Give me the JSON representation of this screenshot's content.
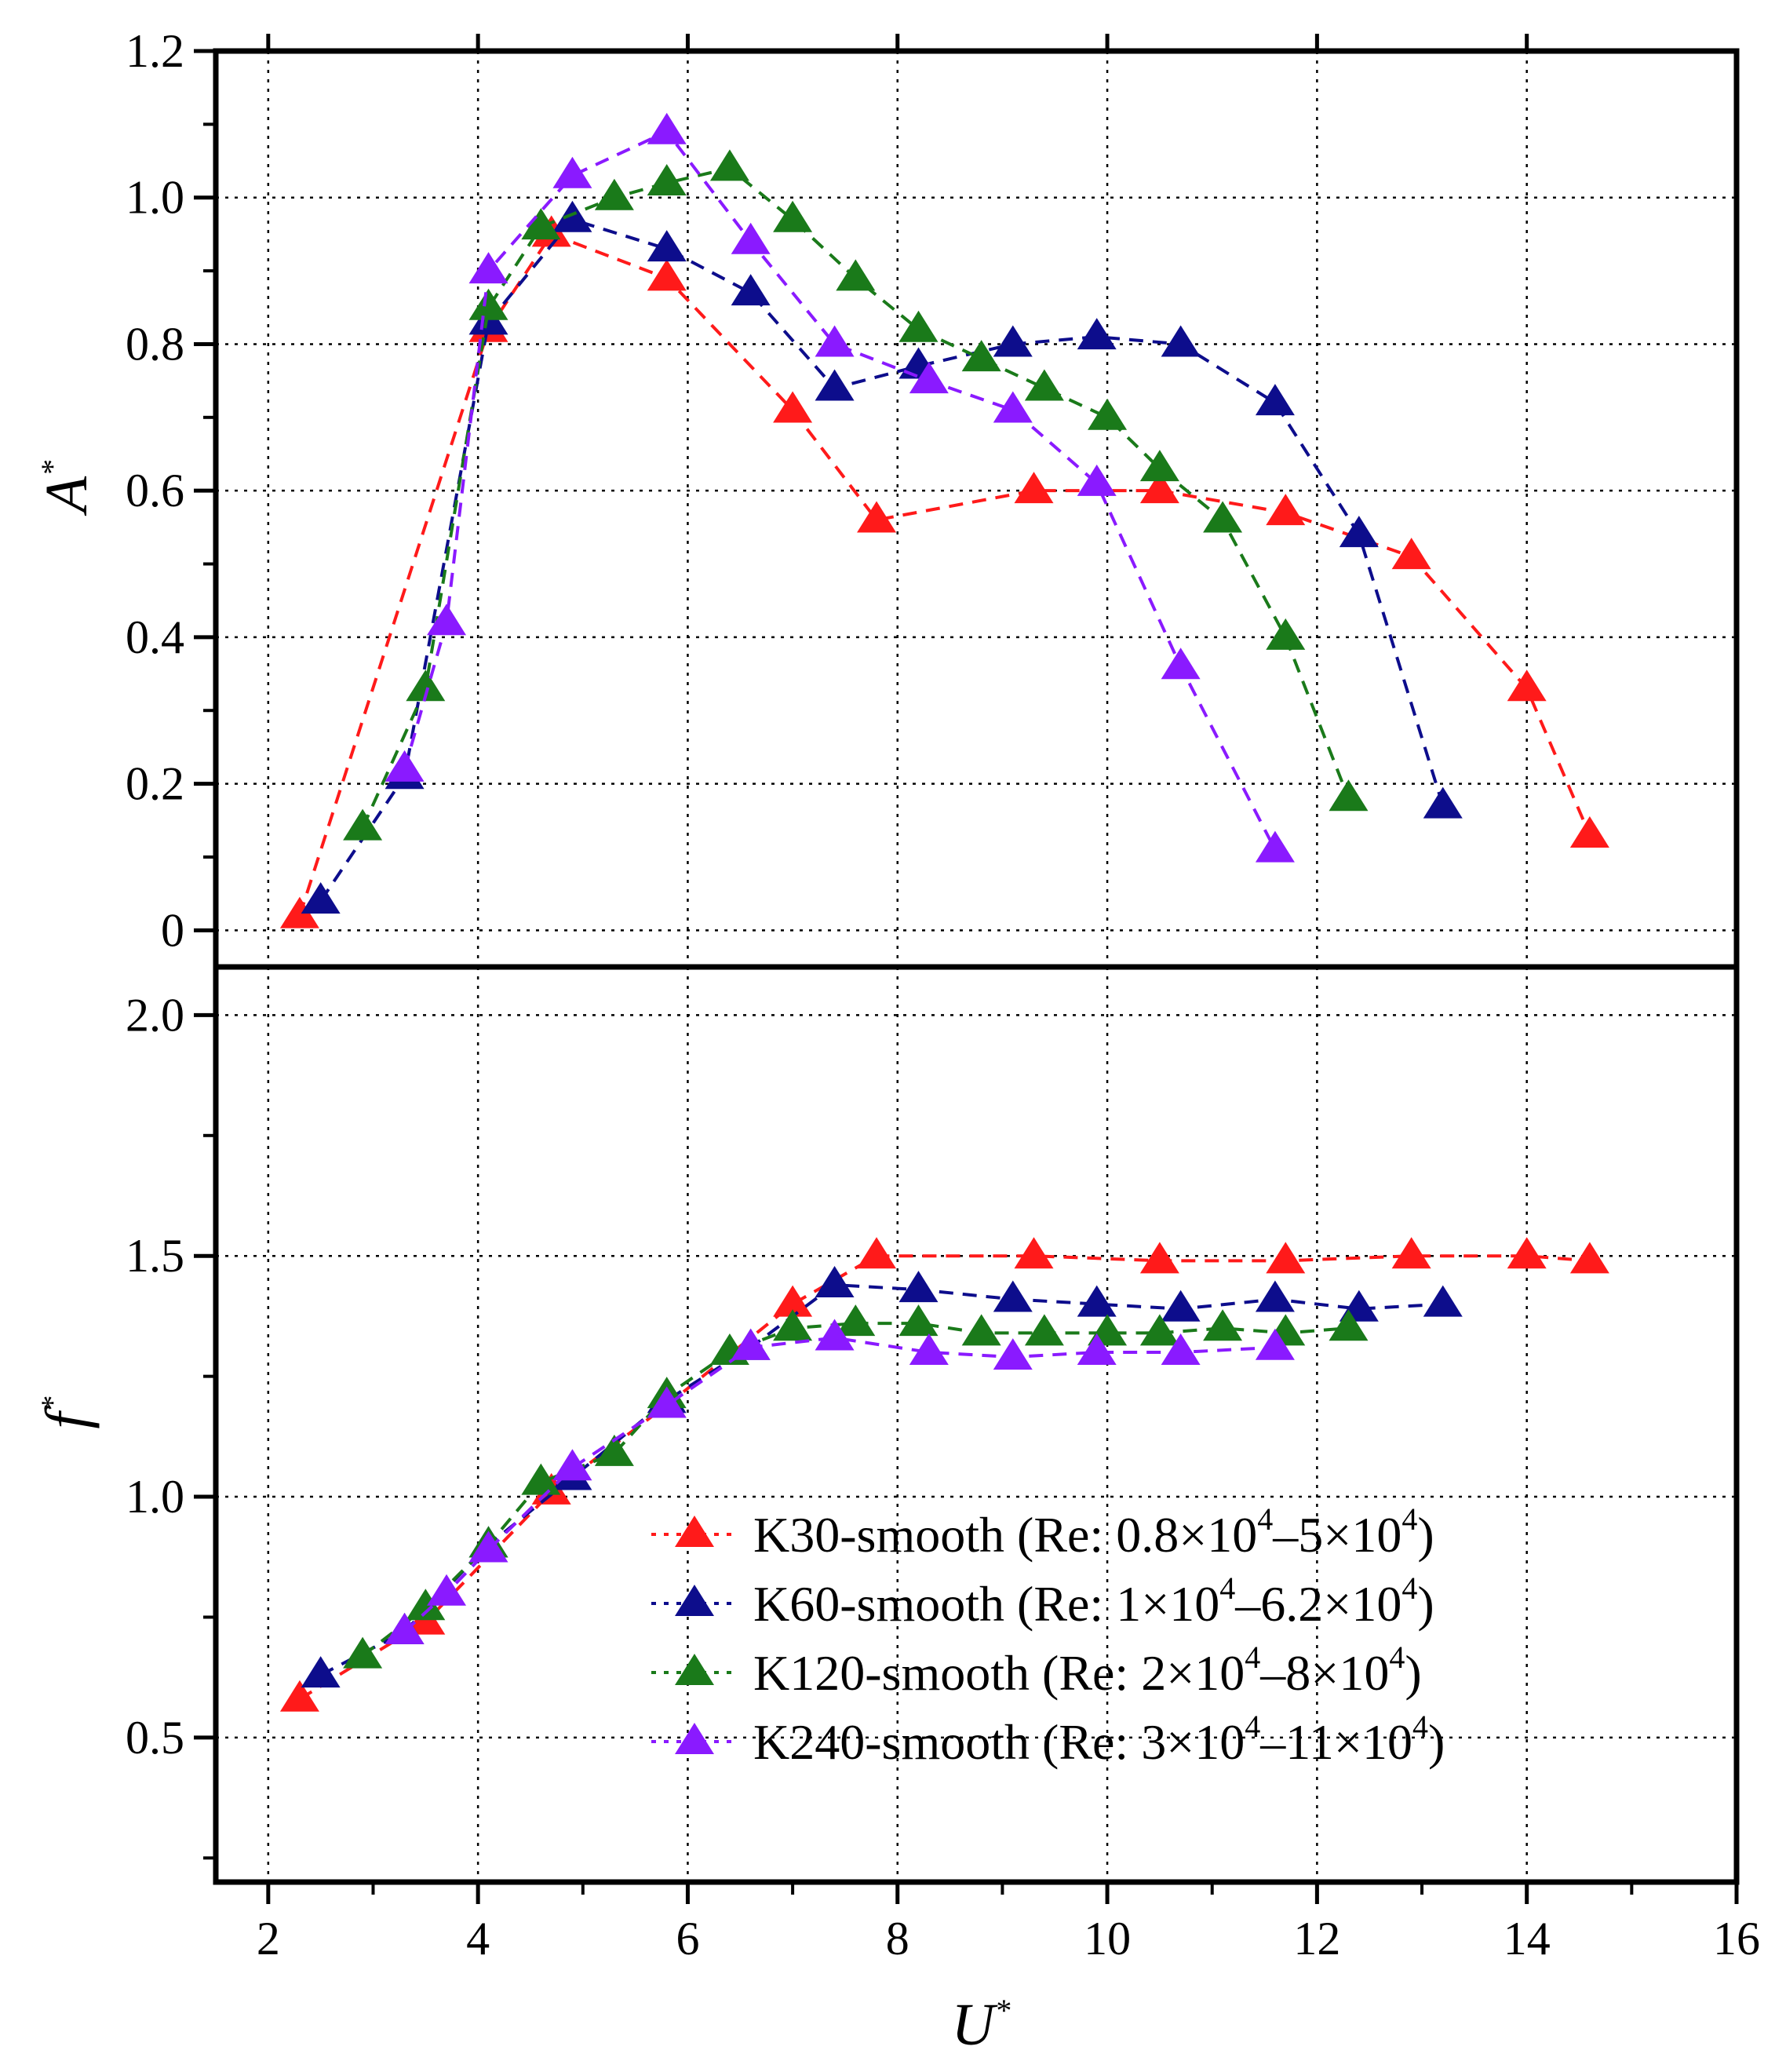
{
  "chart_data": [
    {
      "type": "line",
      "panel": "top",
      "ylabel": "A",
      "ylabel_sup": "*",
      "xlim": [
        1.5,
        16
      ],
      "ylim": [
        -0.05,
        1.2
      ],
      "yticks": [
        0,
        0.2,
        0.4,
        0.6,
        0.8,
        1.0,
        1.2
      ],
      "ytick_labels": [
        "0",
        "0.2",
        "0.4",
        "0.6",
        "0.8",
        "1.0",
        "1.2"
      ],
      "grid": true,
      "series": [
        {
          "name": "K30-smooth",
          "color": "#ff1a1a",
          "x": [
            2.3,
            4.1,
            4.7,
            5.8,
            7.0,
            7.8,
            9.3,
            10.5,
            11.7,
            12.9,
            14.0,
            14.6
          ],
          "y": [
            0.02,
            0.82,
            0.95,
            0.89,
            0.71,
            0.56,
            0.6,
            0.6,
            0.57,
            0.51,
            0.33,
            0.13
          ]
        },
        {
          "name": "K60-smooth",
          "color": "#0d0d8c",
          "x": [
            2.5,
            3.3,
            4.1,
            4.9,
            5.8,
            6.6,
            7.4,
            8.2,
            9.1,
            9.9,
            10.7,
            11.6,
            12.4,
            13.2
          ],
          "y": [
            0.04,
            0.21,
            0.83,
            0.97,
            0.93,
            0.87,
            0.74,
            0.77,
            0.8,
            0.81,
            0.8,
            0.72,
            0.54,
            0.17
          ]
        },
        {
          "name": "K120-smooth",
          "color": "#1a7a1a",
          "x": [
            2.9,
            3.5,
            4.1,
            4.6,
            5.3,
            5.8,
            6.4,
            7.0,
            7.6,
            8.2,
            8.8,
            9.4,
            10.0,
            10.5,
            11.1,
            11.7,
            12.3
          ],
          "y": [
            0.14,
            0.33,
            0.85,
            0.96,
            1.0,
            1.02,
            1.04,
            0.97,
            0.89,
            0.82,
            0.78,
            0.74,
            0.7,
            0.63,
            0.56,
            0.4,
            0.18
          ]
        },
        {
          "name": "K240-smooth",
          "color": "#8a1aff",
          "x": [
            3.3,
            3.7,
            4.1,
            4.9,
            5.8,
            6.6,
            7.4,
            8.3,
            9.1,
            9.9,
            10.7,
            11.6
          ],
          "y": [
            0.22,
            0.42,
            0.9,
            1.03,
            1.09,
            0.94,
            0.8,
            0.75,
            0.71,
            0.61,
            0.36,
            0.11
          ]
        }
      ]
    },
    {
      "type": "line",
      "panel": "bottom",
      "xlabel": "U",
      "xlabel_sup": "*",
      "ylabel": "f",
      "ylabel_sup": "*",
      "xlim": [
        1.5,
        16
      ],
      "ylim": [
        0.2,
        2.1
      ],
      "xticks": [
        2,
        4,
        6,
        8,
        10,
        12,
        14,
        16
      ],
      "xtick_labels": [
        "2",
        "4",
        "6",
        "8",
        "10",
        "12",
        "14",
        "16"
      ],
      "yticks": [
        0.5,
        1.0,
        1.5,
        2.0
      ],
      "ytick_labels": [
        "0.5",
        "1.0",
        "1.5",
        "2.0"
      ],
      "grid": true,
      "legend_position": "lower-right",
      "series": [
        {
          "name": "K30-smooth",
          "color": "#ff1a1a",
          "legend": {
            "name": "K30-smooth",
            "re_pre": " (Re: 0.8×10",
            "exp1": "4",
            "re_mid": "–5×10",
            "exp2": "4",
            "re_post": ")"
          },
          "x": [
            2.3,
            3.5,
            4.7,
            5.8,
            7.0,
            7.8,
            9.3,
            10.5,
            11.7,
            12.9,
            14.0,
            14.6
          ],
          "y": [
            0.58,
            0.74,
            1.01,
            1.19,
            1.4,
            1.5,
            1.5,
            1.49,
            1.49,
            1.5,
            1.5,
            1.49
          ]
        },
        {
          "name": "K60-smooth",
          "color": "#0d0d8c",
          "legend": {
            "name": "K60-smooth",
            "re_pre": " (Re: 1×10",
            "exp1": "4",
            "re_mid": "–6.2×10",
            "exp2": "4",
            "re_post": ")"
          },
          "x": [
            2.5,
            3.3,
            4.1,
            4.9,
            5.8,
            6.6,
            7.4,
            8.2,
            9.1,
            9.9,
            10.7,
            11.6,
            12.4,
            13.2
          ],
          "y": [
            0.63,
            0.72,
            0.9,
            1.04,
            1.2,
            1.31,
            1.44,
            1.43,
            1.41,
            1.4,
            1.39,
            1.41,
            1.39,
            1.4
          ]
        },
        {
          "name": "K120-smooth",
          "color": "#1a7a1a",
          "legend": {
            "name": "K120-smooth",
            "re_pre": " (Re: 2×10",
            "exp1": "4",
            "re_mid": "–8×10",
            "exp2": "4",
            "re_post": ")"
          },
          "x": [
            2.9,
            3.5,
            4.1,
            4.6,
            5.3,
            5.8,
            6.4,
            7.0,
            7.6,
            8.2,
            8.8,
            9.4,
            10.0,
            10.5,
            11.1,
            11.7,
            12.3
          ],
          "y": [
            0.67,
            0.77,
            0.9,
            1.03,
            1.09,
            1.21,
            1.3,
            1.35,
            1.36,
            1.36,
            1.34,
            1.34,
            1.34,
            1.34,
            1.35,
            1.34,
            1.35
          ]
        },
        {
          "name": "K240-smooth",
          "color": "#8a1aff",
          "legend": {
            "name": "K240-smooth",
            "re_pre": " (Re: 3×10",
            "exp1": "4",
            "re_mid": "–11×10",
            "exp2": "4",
            "re_post": ")"
          },
          "x": [
            3.3,
            3.7,
            4.1,
            4.9,
            5.8,
            6.6,
            7.4,
            8.3,
            9.1,
            9.9,
            10.7,
            11.6
          ],
          "y": [
            0.72,
            0.8,
            0.89,
            1.06,
            1.19,
            1.31,
            1.33,
            1.3,
            1.29,
            1.3,
            1.3,
            1.31
          ]
        }
      ]
    }
  ]
}
